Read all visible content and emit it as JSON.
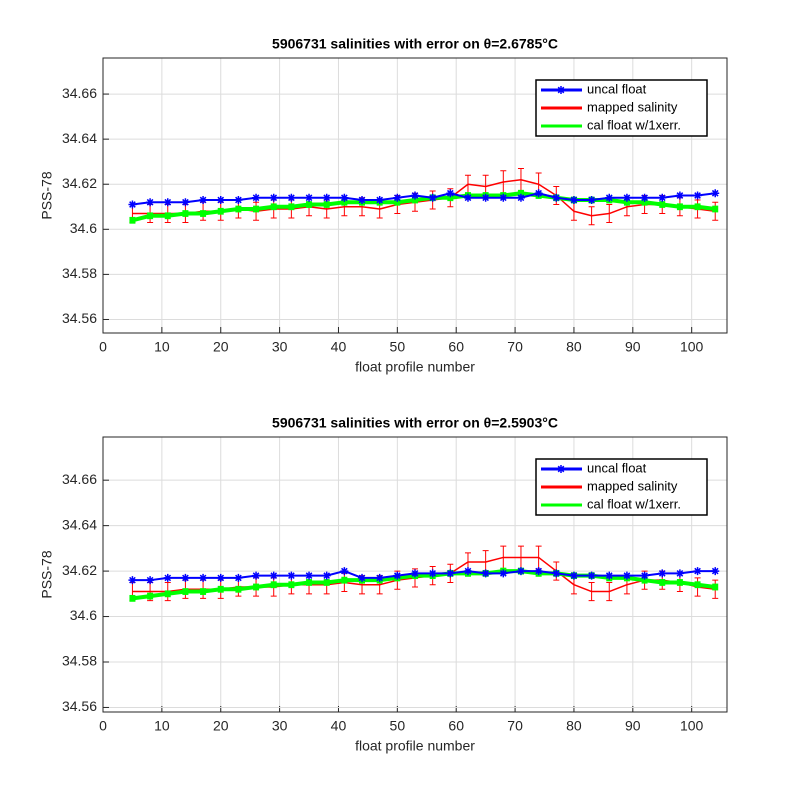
{
  "chart_data": [
    {
      "type": "line",
      "title": "5906731 salinities with error on θ=2.6785°C",
      "xlabel": "float profile number",
      "ylabel": "PSS-78",
      "x": [
        5,
        8,
        11,
        14,
        17,
        20,
        23,
        26,
        29,
        32,
        35,
        38,
        41,
        44,
        47,
        50,
        53,
        56,
        59,
        62,
        65,
        68,
        71,
        74,
        77,
        80,
        83,
        86,
        89,
        92,
        95,
        98,
        101,
        104
      ],
      "xlim": [
        0,
        106
      ],
      "xticks": [
        0,
        10,
        20,
        30,
        40,
        50,
        60,
        70,
        80,
        90,
        100
      ],
      "ylim": [
        34.554,
        34.676
      ],
      "yticks": [
        34.56,
        34.58,
        34.6,
        34.62,
        34.64,
        34.66
      ],
      "grid": true,
      "legend": "upper right",
      "series": [
        {
          "name": "mapped salinity",
          "color": "#ff0000",
          "values": [
            34.607,
            34.607,
            34.607,
            34.607,
            34.608,
            34.608,
            34.609,
            34.608,
            34.609,
            34.609,
            34.61,
            34.609,
            34.61,
            34.61,
            34.609,
            34.611,
            34.612,
            34.613,
            34.614,
            34.62,
            34.619,
            34.621,
            34.622,
            34.62,
            34.615,
            34.608,
            34.606,
            34.607,
            34.61,
            34.611,
            34.611,
            34.61,
            34.609,
            34.608
          ],
          "errors": [
            0.004,
            0.004,
            0.004,
            0.004,
            0.004,
            0.004,
            0.004,
            0.004,
            0.004,
            0.004,
            0.004,
            0.004,
            0.004,
            0.004,
            0.004,
            0.004,
            0.004,
            0.004,
            0.004,
            0.004,
            0.005,
            0.005,
            0.005,
            0.005,
            0.004,
            0.004,
            0.004,
            0.004,
            0.004,
            0.004,
            0.004,
            0.004,
            0.004,
            0.004
          ]
        },
        {
          "name": "cal float w/1xerr.",
          "color": "#00ff00",
          "values": [
            34.604,
            34.606,
            34.606,
            34.607,
            34.607,
            34.608,
            34.609,
            34.609,
            34.61,
            34.61,
            34.611,
            34.611,
            34.612,
            34.612,
            34.612,
            34.612,
            34.613,
            34.614,
            34.614,
            34.615,
            34.615,
            34.615,
            34.616,
            34.615,
            34.614,
            34.613,
            34.613,
            34.613,
            34.612,
            34.612,
            34.611,
            34.61,
            34.61,
            34.609
          ],
          "errors": [
            0.0015,
            0.0015,
            0.0015,
            0.0015,
            0.0015,
            0.0015,
            0.0015,
            0.0015,
            0.0015,
            0.0015,
            0.0015,
            0.0015,
            0.0015,
            0.0015,
            0.0015,
            0.0015,
            0.0015,
            0.0015,
            0.0015,
            0.0015,
            0.0015,
            0.0015,
            0.0015,
            0.0015,
            0.0015,
            0.0015,
            0.0015,
            0.0015,
            0.0015,
            0.0015,
            0.0015,
            0.0015,
            0.0015,
            0.0015
          ]
        },
        {
          "name": "uncal float",
          "color": "#0000ff",
          "values": [
            34.611,
            34.612,
            34.612,
            34.612,
            34.613,
            34.613,
            34.613,
            34.614,
            34.614,
            34.614,
            34.614,
            34.614,
            34.614,
            34.613,
            34.613,
            34.614,
            34.615,
            34.614,
            34.616,
            34.614,
            34.614,
            34.614,
            34.614,
            34.616,
            34.614,
            34.613,
            34.613,
            34.614,
            34.614,
            34.614,
            34.614,
            34.615,
            34.615,
            34.616
          ]
        }
      ]
    },
    {
      "type": "line",
      "title": "5906731 salinities with error on θ=2.5903°C",
      "xlabel": "float profile number",
      "ylabel": "PSS-78",
      "x": [
        5,
        8,
        11,
        14,
        17,
        20,
        23,
        26,
        29,
        32,
        35,
        38,
        41,
        44,
        47,
        50,
        53,
        56,
        59,
        62,
        65,
        68,
        71,
        74,
        77,
        80,
        83,
        86,
        89,
        92,
        95,
        98,
        101,
        104
      ],
      "xlim": [
        0,
        106
      ],
      "xticks": [
        0,
        10,
        20,
        30,
        40,
        50,
        60,
        70,
        80,
        90,
        100
      ],
      "ylim": [
        34.558,
        34.679
      ],
      "yticks": [
        34.56,
        34.58,
        34.6,
        34.62,
        34.64,
        34.66
      ],
      "grid": true,
      "legend": "upper right",
      "series": [
        {
          "name": "mapped salinity",
          "color": "#ff0000",
          "values": [
            34.611,
            34.611,
            34.611,
            34.612,
            34.612,
            34.612,
            34.613,
            34.613,
            34.613,
            34.614,
            34.614,
            34.614,
            34.615,
            34.614,
            34.614,
            34.616,
            34.617,
            34.618,
            34.619,
            34.624,
            34.624,
            34.626,
            34.626,
            34.626,
            34.62,
            34.614,
            34.611,
            34.611,
            34.614,
            34.616,
            34.616,
            34.615,
            34.613,
            34.612
          ],
          "errors": [
            0.004,
            0.004,
            0.004,
            0.004,
            0.004,
            0.004,
            0.004,
            0.004,
            0.004,
            0.004,
            0.004,
            0.004,
            0.004,
            0.004,
            0.004,
            0.004,
            0.004,
            0.004,
            0.004,
            0.004,
            0.005,
            0.005,
            0.005,
            0.005,
            0.004,
            0.004,
            0.004,
            0.004,
            0.004,
            0.004,
            0.004,
            0.004,
            0.004,
            0.004
          ]
        },
        {
          "name": "cal float w/1xerr.",
          "color": "#00ff00",
          "values": [
            34.608,
            34.609,
            34.61,
            34.611,
            34.611,
            34.612,
            34.612,
            34.613,
            34.614,
            34.614,
            34.615,
            34.615,
            34.616,
            34.616,
            34.616,
            34.617,
            34.618,
            34.618,
            34.619,
            34.619,
            34.619,
            34.62,
            34.62,
            34.619,
            34.619,
            34.618,
            34.618,
            34.617,
            34.617,
            34.616,
            34.615,
            34.615,
            34.614,
            34.613
          ],
          "errors": [
            0.0015,
            0.0015,
            0.0015,
            0.0015,
            0.0015,
            0.0015,
            0.0015,
            0.0015,
            0.0015,
            0.0015,
            0.0015,
            0.0015,
            0.0015,
            0.0015,
            0.0015,
            0.0015,
            0.0015,
            0.0015,
            0.0015,
            0.0015,
            0.0015,
            0.0015,
            0.0015,
            0.0015,
            0.0015,
            0.0015,
            0.0015,
            0.0015,
            0.0015,
            0.0015,
            0.0015,
            0.0015,
            0.0015,
            0.0015
          ]
        },
        {
          "name": "uncal float",
          "color": "#0000ff",
          "values": [
            34.616,
            34.616,
            34.617,
            34.617,
            34.617,
            34.617,
            34.617,
            34.618,
            34.618,
            34.618,
            34.618,
            34.618,
            34.62,
            34.617,
            34.617,
            34.618,
            34.619,
            34.619,
            34.619,
            34.62,
            34.619,
            34.619,
            34.62,
            34.62,
            34.619,
            34.618,
            34.618,
            34.618,
            34.618,
            34.618,
            34.619,
            34.619,
            34.62,
            34.62
          ]
        }
      ]
    }
  ]
}
